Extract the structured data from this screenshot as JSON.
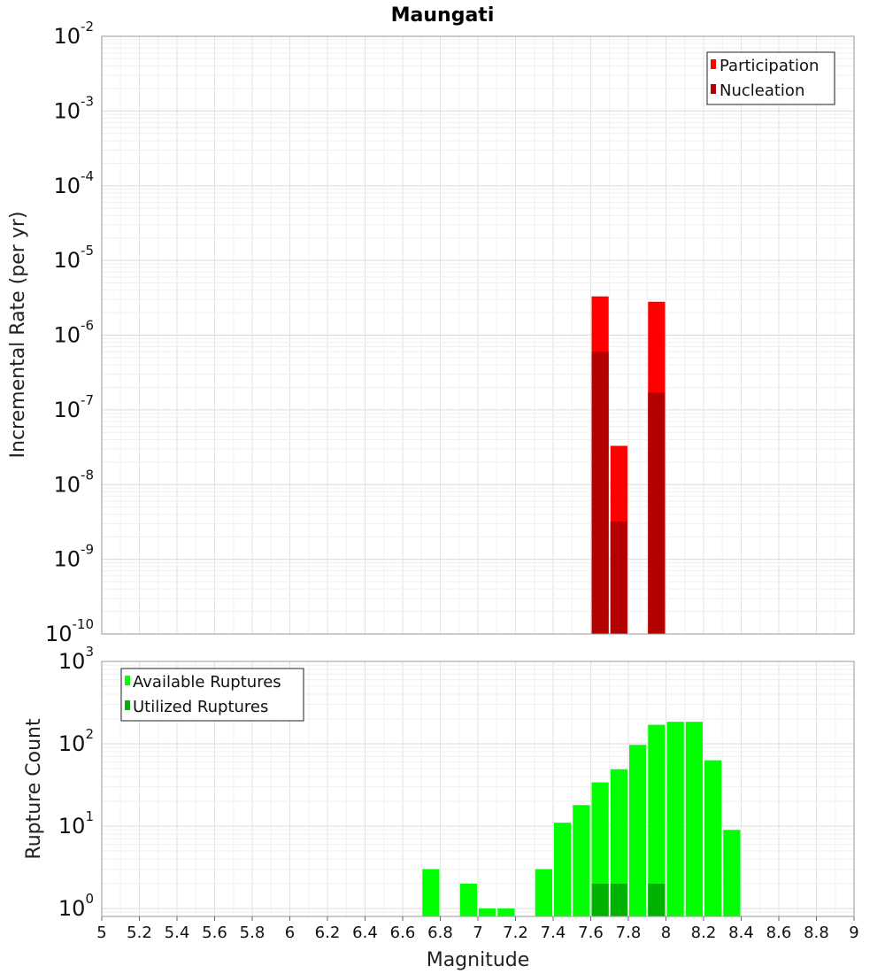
{
  "title": "Maungati",
  "xlabel": "Magnitude",
  "x_ticks": [
    "5",
    "5.2",
    "5.4",
    "5.6",
    "5.8",
    "6",
    "6.2",
    "6.4",
    "6.6",
    "6.8",
    "7",
    "7.2",
    "7.4",
    "7.6",
    "7.8",
    "8",
    "8.2",
    "8.4",
    "8.6",
    "8.8",
    "9"
  ],
  "chart_data": [
    {
      "type": "bar",
      "ylabel": "Incremental Rate (per yr)",
      "yscale": "log",
      "xlim": [
        5,
        9
      ],
      "ylim": [
        1e-10,
        0.01
      ],
      "y_tick_exponents": [
        "-10",
        "-9",
        "-8",
        "-7",
        "-6",
        "-5",
        "-4",
        "-3",
        "-2"
      ],
      "bar_width": 0.1,
      "legend": {
        "position": "top-right",
        "entries": [
          {
            "name": "Participation",
            "color": "#ff0000"
          },
          {
            "name": "Nucleation",
            "color": "#b30000"
          }
        ]
      },
      "series": [
        {
          "name": "Participation",
          "color": "#ff0000",
          "x": [
            7.65,
            7.75,
            7.95
          ],
          "values": [
            3.3e-06,
            3.3e-08,
            2.8e-06
          ]
        },
        {
          "name": "Nucleation",
          "color": "#b30000",
          "x": [
            7.65,
            7.75,
            7.95
          ],
          "values": [
            6e-07,
            3.2e-09,
            1.7e-07
          ]
        }
      ]
    },
    {
      "type": "bar",
      "ylabel": "Rupture Count",
      "yscale": "log",
      "xlim": [
        5,
        9
      ],
      "ylim": [
        0.8,
        1000
      ],
      "y_tick_exponents": [
        "0",
        "1",
        "2",
        "3"
      ],
      "bar_width": 0.1,
      "legend": {
        "position": "top-left",
        "entries": [
          {
            "name": "Available Ruptures",
            "color": "#00ff00"
          },
          {
            "name": "Utilized Ruptures",
            "color": "#00b300"
          }
        ]
      },
      "series": [
        {
          "name": "Available Ruptures",
          "color": "#00ff00",
          "x": [
            6.75,
            6.95,
            7.05,
            7.15,
            7.35,
            7.45,
            7.55,
            7.65,
            7.75,
            7.85,
            7.95,
            8.05,
            8.15,
            8.25,
            8.35
          ],
          "values": [
            3,
            2,
            1,
            1,
            3,
            11,
            18,
            34,
            49,
            97,
            170,
            185,
            185,
            63,
            9
          ]
        },
        {
          "name": "Utilized Ruptures",
          "color": "#00b300",
          "x": [
            7.65,
            7.75,
            7.95
          ],
          "values": [
            2,
            2,
            2
          ]
        }
      ]
    }
  ]
}
